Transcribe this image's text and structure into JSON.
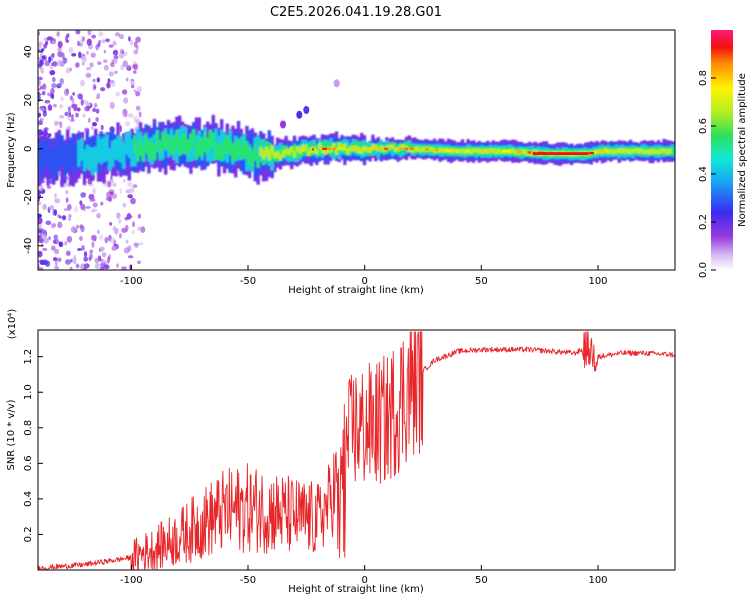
{
  "title": "C2E5.2026.041.19.28.G01",
  "chart_data": [
    {
      "type": "heatmap",
      "xlabel": "Height of straight line (km)",
      "ylabel": "Frequency (Hz)",
      "xlim": [
        -140,
        133
      ],
      "ylim": [
        -50,
        49
      ],
      "xticks": [
        -100,
        -50,
        0,
        50,
        100
      ],
      "yticks": [
        -40,
        -20,
        0,
        20,
        40
      ],
      "grid": false,
      "colorbar": {
        "label": "Normalized spectral amplitude",
        "range": [
          0,
          1
        ],
        "ticks": [
          0.0,
          0.2,
          0.4,
          0.6,
          0.8
        ]
      },
      "ridge": {
        "x": [
          -140,
          -120,
          -100,
          -80,
          -60,
          -50,
          -40,
          -30,
          -20,
          -10,
          0,
          20,
          40,
          60,
          80,
          95,
          100,
          120,
          133
        ],
        "center_hz": [
          -4,
          -3,
          0,
          2,
          1,
          -2,
          -3,
          -1,
          0,
          0,
          0,
          0,
          -1,
          -1,
          -2,
          -2,
          -1,
          -1,
          -1
        ],
        "amplitude": [
          0.3,
          0.4,
          0.5,
          0.55,
          0.55,
          0.6,
          0.65,
          0.7,
          0.9,
          0.75,
          0.85,
          0.85,
          0.75,
          0.8,
          0.95,
          0.95,
          0.75,
          0.7,
          0.6
        ]
      }
    },
    {
      "type": "line",
      "xlabel": "Height of straight line (km)",
      "ylabel": "SNR (10 * v/v)",
      "y_scale_label": "(x10⁴)",
      "xlim": [
        -140,
        133
      ],
      "ylim": [
        0,
        1.35
      ],
      "xticks": [
        -100,
        -50,
        0,
        50,
        100
      ],
      "yticks": [
        0.2,
        0.4,
        0.6,
        0.8,
        1.0,
        1.2
      ],
      "grid": false,
      "color": "#e8262a",
      "series": [
        {
          "x": [
            -140,
            -130,
            -120,
            -110,
            -100,
            -90,
            -80,
            -70,
            -60,
            -50,
            -40,
            -30,
            -20,
            -15,
            -10,
            -5,
            0,
            5,
            10,
            15,
            20,
            25,
            30,
            40,
            50,
            60,
            70,
            80,
            90,
            95,
            100,
            110,
            120,
            133
          ],
          "y": [
            0.01,
            0.02,
            0.03,
            0.05,
            0.07,
            0.12,
            0.18,
            0.26,
            0.33,
            0.35,
            0.33,
            0.3,
            0.28,
            0.38,
            0.6,
            0.8,
            0.8,
            0.82,
            0.85,
            0.95,
            1.05,
            1.12,
            1.18,
            1.23,
            1.24,
            1.24,
            1.24,
            1.23,
            1.22,
            1.25,
            1.2,
            1.22,
            1.22,
            1.21
          ]
        }
      ]
    }
  ]
}
